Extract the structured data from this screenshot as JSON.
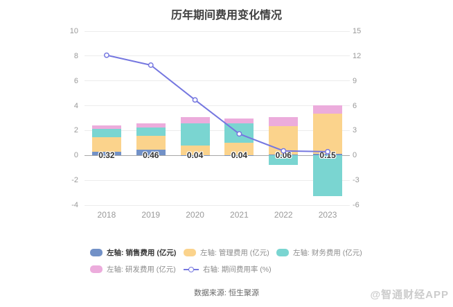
{
  "title": "历年期间费用变化情况",
  "source": "数据来源: 恒生聚源",
  "watermark": "@智通财经APP",
  "colors": {
    "sales": "#7291C7",
    "admin": "#FBD38C",
    "finance": "#7AD5D1",
    "rnd": "#ECACDC",
    "line": "#7577E0",
    "grid": "#ececec",
    "zero_line": "#a6a6a6",
    "axis_text": "#999999",
    "title_text": "#404040",
    "bar_label_text": "#333333"
  },
  "chart_data": {
    "type": "bar",
    "subtype": "stacked-bar-with-line-combo",
    "title": "历年期间费用变化情况",
    "categories": [
      "2018",
      "2019",
      "2020",
      "2021",
      "2022",
      "2023"
    ],
    "series": [
      {
        "name": "左轴: 销售费用 (亿元)",
        "kind": "bar",
        "axis": "left",
        "color_key": "sales",
        "values": [
          0.32,
          0.46,
          0.04,
          0.04,
          0.06,
          0.15
        ]
      },
      {
        "name": "左轴: 管理费用 (亿元)",
        "kind": "bar",
        "axis": "left",
        "color_key": "admin",
        "values": [
          1.17,
          1.09,
          0.75,
          1.0,
          2.3,
          3.23
        ]
      },
      {
        "name": "左轴: 财务费用 (亿元)",
        "kind": "bar",
        "axis": "left",
        "color_key": "finance",
        "values": [
          0.62,
          0.7,
          1.81,
          1.52,
          -0.76,
          -3.25
        ]
      },
      {
        "name": "左轴: 研发费用 (亿元)",
        "kind": "bar",
        "axis": "left",
        "color_key": "rnd",
        "values": [
          0.3,
          0.35,
          0.5,
          0.41,
          0.73,
          0.67
        ]
      },
      {
        "name": "右轴: 期间费用率 (%)",
        "kind": "line",
        "axis": "right",
        "color_key": "line",
        "values": [
          12.1,
          10.9,
          6.7,
          2.6,
          0.55,
          0.45
        ]
      }
    ],
    "bar_labels": [
      "0.32",
      "0.46",
      "0.04",
      "0.04",
      "0.06",
      "0.15"
    ],
    "left_axis": {
      "min": -4,
      "max": 10,
      "ticks": [
        10,
        8,
        6,
        4,
        2,
        0,
        -2,
        -4
      ]
    },
    "right_axis": {
      "min": -6,
      "max": 15,
      "ticks": [
        15,
        12,
        9,
        6,
        3,
        0,
        -3,
        -6
      ]
    },
    "grid": true,
    "legend_position": "bottom"
  },
  "legend": {
    "items": [
      {
        "key": "sales",
        "label": "左轴: 销售费用 (亿元)",
        "icon": "rect",
        "color_key": "sales",
        "emphasized": true
      },
      {
        "key": "admin",
        "label": "左轴: 管理费用 (亿元)",
        "icon": "rect",
        "color_key": "admin",
        "emphasized": false
      },
      {
        "key": "finance",
        "label": "左轴: 财务费用 (亿元)",
        "icon": "rect",
        "color_key": "finance",
        "emphasized": false
      },
      {
        "key": "rnd",
        "label": "左轴: 研发费用 (亿元)",
        "icon": "rect",
        "color_key": "rnd",
        "emphasized": false
      },
      {
        "key": "rate",
        "label": "右轴: 期间费用率 (%)",
        "icon": "line",
        "color_key": "line",
        "emphasized": false
      }
    ]
  }
}
